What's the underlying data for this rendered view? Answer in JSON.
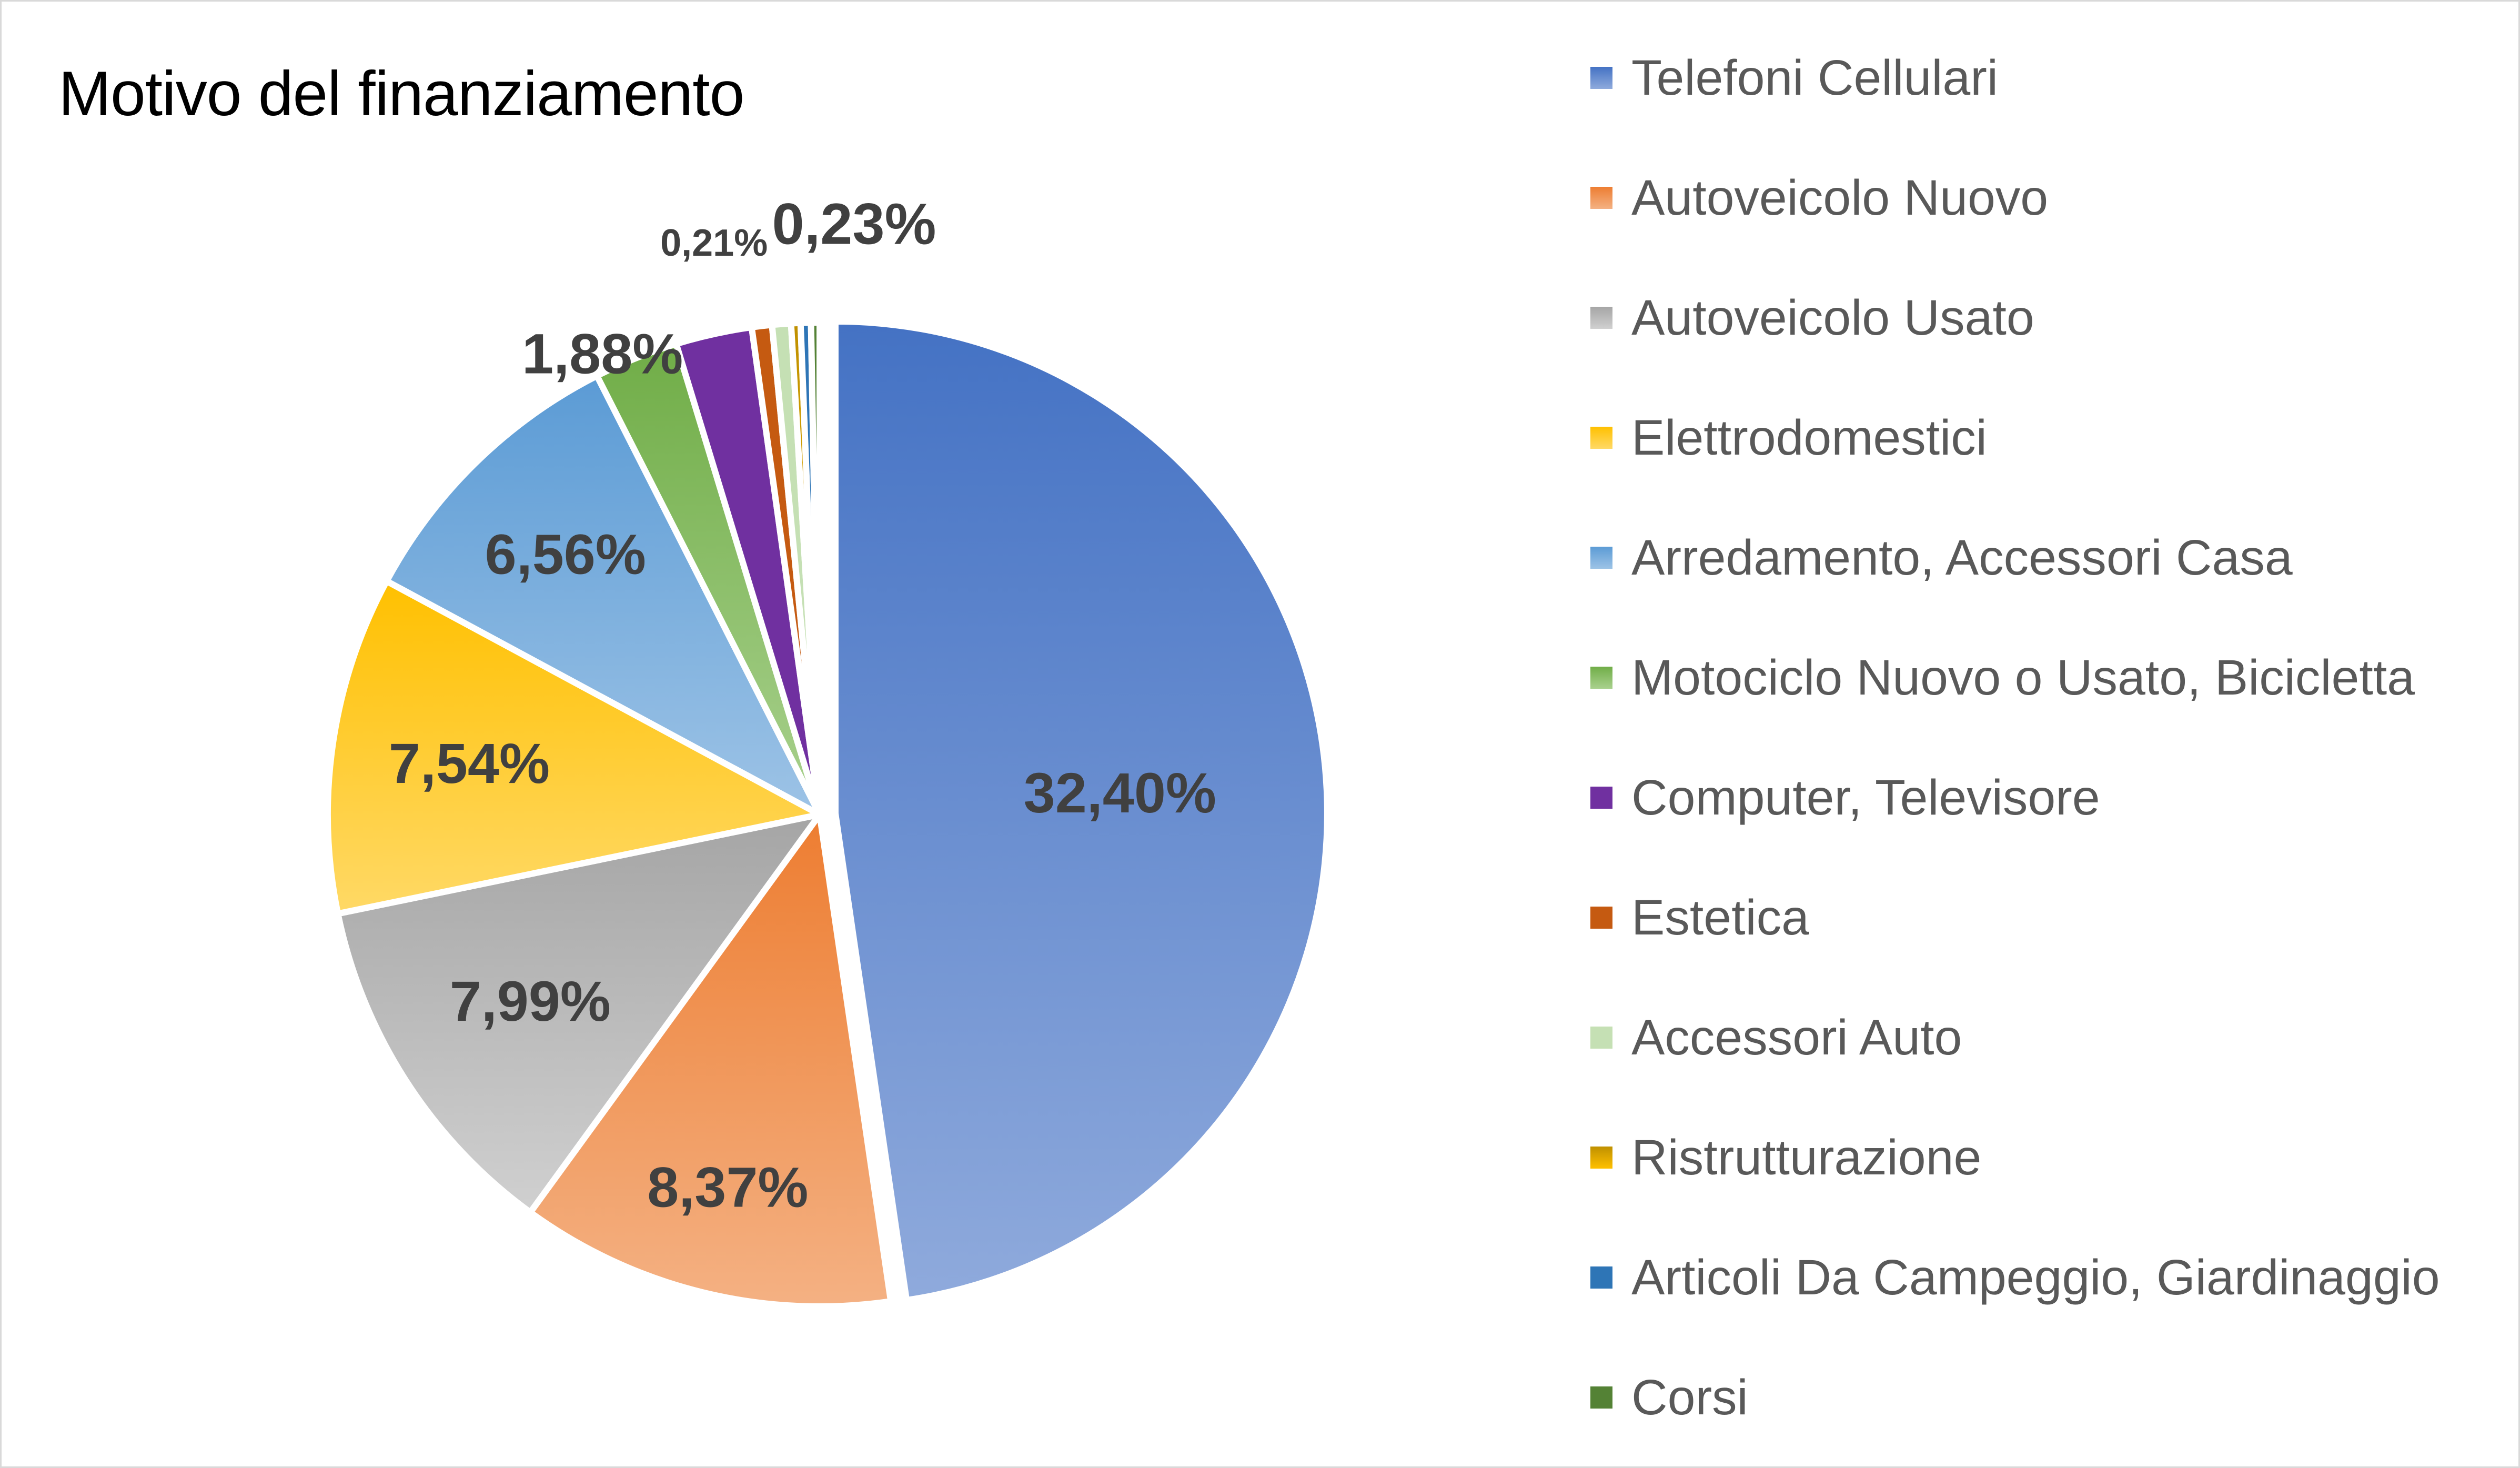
{
  "chart_data": {
    "type": "pie",
    "title": "Motivo del finanziamento",
    "legend_position": "right",
    "slices": [
      {
        "name": "Telefoni Cellulari",
        "value": 32.4,
        "label": "32,40%",
        "color": "#4472c4",
        "color_light": "#8faadc"
      },
      {
        "name": "Autoveicolo Nuovo",
        "value": 8.37,
        "label": "8,37%",
        "color": "#ed7d31",
        "color_light": "#f4b183"
      },
      {
        "name": "Autoveicolo Usato",
        "value": 7.99,
        "label": "7,99%",
        "color": "#a5a5a5",
        "color_light": "#d0d0d0"
      },
      {
        "name": "Elettrodomestici",
        "value": 7.54,
        "label": "7,54%",
        "color": "#ffc000",
        "color_light": "#ffd966"
      },
      {
        "name": "Arredamento, Accessori Casa",
        "value": 6.56,
        "label": "6,56%",
        "color": "#5b9bd5",
        "color_light": "#9dc3e6"
      },
      {
        "name": "Motociclo Nuovo o Usato, Bicicletta",
        "value": 1.88,
        "label": "1,88%",
        "color": "#70ad47",
        "color_light": "#a9d18e"
      },
      {
        "name": "Computer, Televisore",
        "value": 1.7,
        "label": "",
        "color": "#7030a0",
        "color_light": "#7030a0"
      },
      {
        "name": "Estetica",
        "value": 0.45,
        "label": "",
        "color": "#c55a11",
        "color_light": "#c55a11"
      },
      {
        "name": "Accessori Auto",
        "value": 0.42,
        "label": "",
        "color": "#c5e0b4",
        "color_light": "#c5e0b4"
      },
      {
        "name": "Ristrutturazione",
        "value": 0.21,
        "label": "0,21%",
        "color": "#bf9000",
        "color_light": "#ffc000"
      },
      {
        "name": "Articoli Da Campeggio, Giardinaggio",
        "value": 0.23,
        "label": "0,23%",
        "color": "#2e75b6",
        "color_light": "#2e75b6"
      },
      {
        "name": "Corsi",
        "value": 0.19,
        "label": "",
        "color": "#548235",
        "color_light": "#548235"
      }
    ]
  }
}
